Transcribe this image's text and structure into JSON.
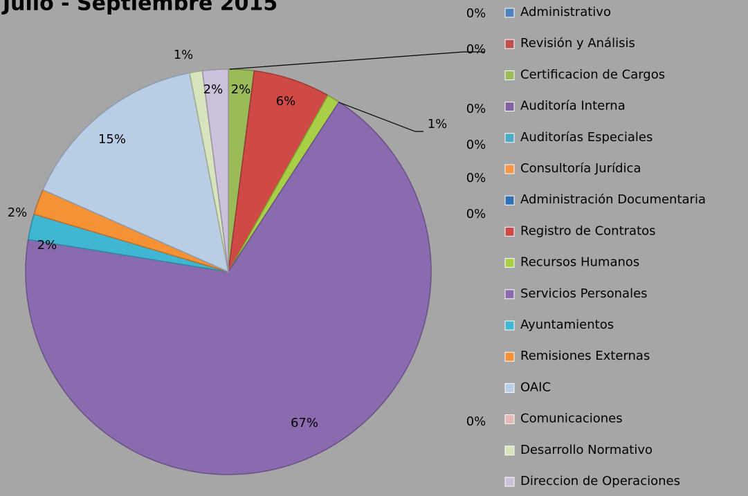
{
  "chart_data": {
    "type": "pie",
    "title": "Julio - Septiembre 2015",
    "categories": [
      "Administrativo",
      "Revisión y Análisis",
      "Certificacion de Cargos",
      "Auditoría Interna",
      "Auditorías Especiales",
      "Consultoría Jurídica",
      "Administración Documentaria",
      "Registro de Contratos",
      "Recursos Humanos",
      "Servicios Personales",
      "Ayuntamientos",
      "Remisiones Externas",
      "OAIC",
      "Comunicaciones",
      "Desarrollo Normativo",
      "Direccion de Operaciones"
    ],
    "values": [
      0,
      0,
      2,
      0,
      0,
      0,
      0,
      6,
      1,
      67,
      2,
      2,
      15,
      0,
      1,
      2
    ],
    "value_labels": [
      "0%",
      "0%",
      "2%",
      "0%",
      "0%",
      "0%",
      "0%",
      "6%",
      "1%",
      "67%",
      "2%",
      "2%",
      "15%",
      "0%",
      "1%",
      "2%"
    ],
    "colors": [
      "#4f81bd",
      "#c0504d",
      "#9bbb59",
      "#8064a2",
      "#4bacc6",
      "#f79646",
      "#2c6fb5",
      "#d04a45",
      "#a8cf45",
      "#8a6bb0",
      "#3fb6d2",
      "#f59236",
      "#b9cde5",
      "#e6b9b8",
      "#d7e4bd",
      "#ccc1da"
    ],
    "legend": "right"
  }
}
